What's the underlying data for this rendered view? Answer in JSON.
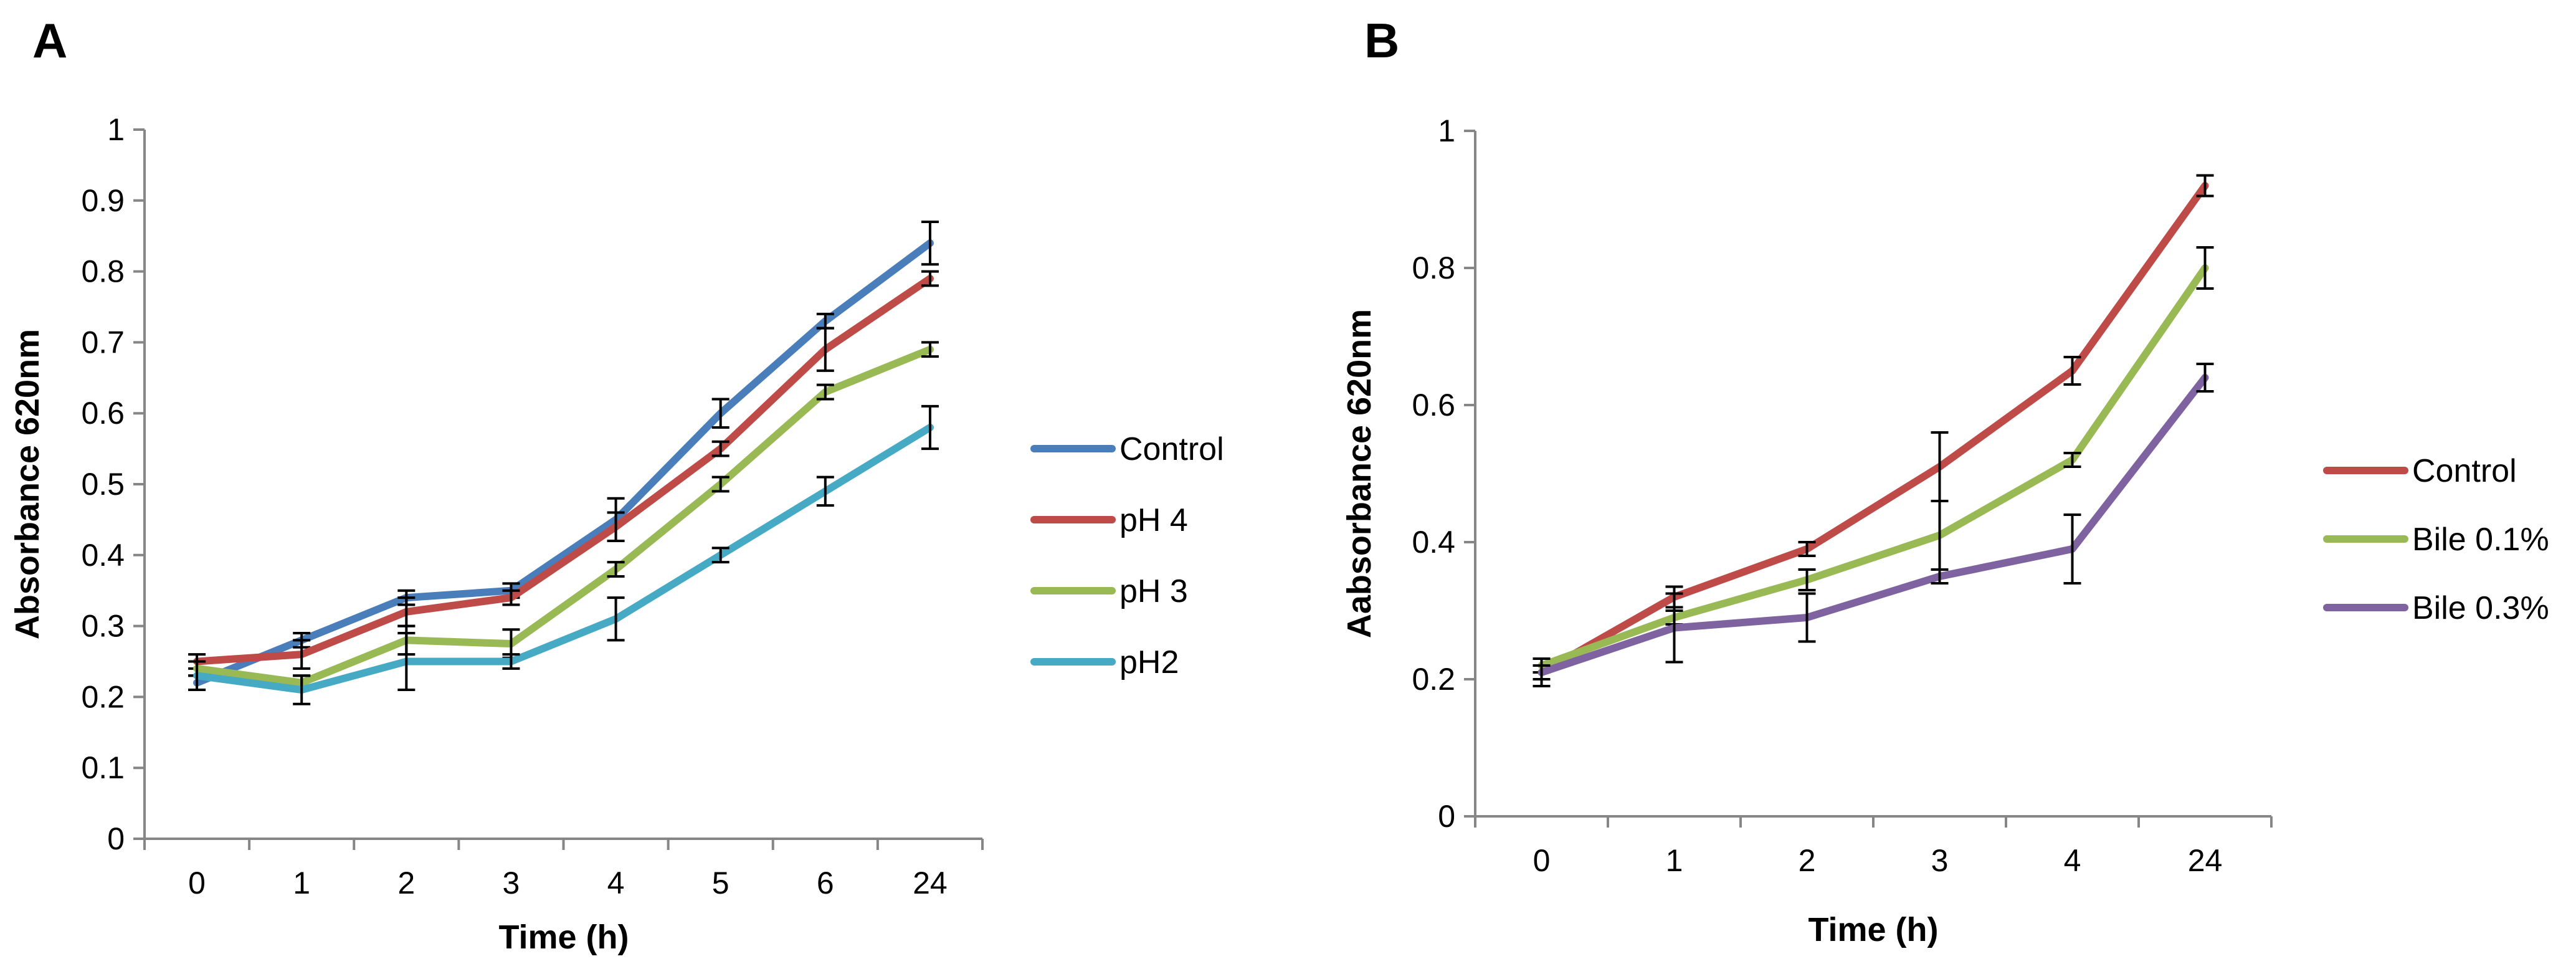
{
  "chart_data": [
    {
      "panel_label": "A",
      "type": "line",
      "categories": [
        "0",
        "1",
        "2",
        "3",
        "4",
        "5",
        "6",
        "24"
      ],
      "xlabel": "Time (h)",
      "ylabel": "Absorbance  620nm",
      "ylim": [
        0,
        1
      ],
      "yticks": [
        "0",
        "0.1",
        "0.2",
        "0.3",
        "0.4",
        "0.5",
        "0.6",
        "0.7",
        "0.8",
        "0.9",
        "1"
      ],
      "grid": false,
      "legend_position": "right",
      "series": [
        {
          "name": "Control",
          "color": "#4a7ebb",
          "values": [
            0.22,
            0.28,
            0.34,
            0.35,
            0.45,
            0.6,
            0.73,
            0.84
          ],
          "errors": [
            0.01,
            0.01,
            0.01,
            0.01,
            0.03,
            0.02,
            0.01,
            0.03
          ]
        },
        {
          "name": " pH 4",
          "color": "#be4b48",
          "values": [
            0.25,
            0.26,
            0.32,
            0.34,
            0.44,
            0.55,
            0.69,
            0.79
          ],
          "errors": [
            0.01,
            0.02,
            0.02,
            0.01,
            0.02,
            0.01,
            0.03,
            0.01
          ]
        },
        {
          "name": "pH 3",
          "color": "#98b954",
          "values": [
            0.24,
            0.22,
            0.28,
            0.275,
            0.38,
            0.5,
            0.63,
            0.69
          ],
          "errors": [
            0.01,
            0.01,
            0.02,
            0.02,
            0.01,
            0.01,
            0.01,
            0.01
          ]
        },
        {
          "name": "pH2",
          "color": "#46aac5",
          "values": [
            0.23,
            0.21,
            0.25,
            0.25,
            0.31,
            0.4,
            0.49,
            0.58
          ],
          "errors": [
            0.02,
            0.02,
            0.04,
            0.01,
            0.03,
            0.01,
            0.02,
            0.03
          ]
        }
      ]
    },
    {
      "panel_label": "B",
      "type": "line",
      "categories": [
        "0",
        "1",
        "2",
        "3",
        "4",
        "24"
      ],
      "xlabel": "Time (h)",
      "ylabel": "Aabsorbance  620nm",
      "ylim": [
        0,
        1
      ],
      "yticks": [
        "0",
        "0.2",
        "0.4",
        "0.6",
        "0.8",
        "1"
      ],
      "grid": false,
      "legend_position": "right",
      "series": [
        {
          "name": "Control",
          "color": "#be4b48",
          "values": [
            0.21,
            0.32,
            0.39,
            0.51,
            0.65,
            0.92
          ],
          "errors": [
            0.02,
            0.015,
            0.01,
            0.05,
            0.02,
            0.015
          ]
        },
        {
          "name": "Bile 0.1%",
          "color": "#98b954",
          "values": [
            0.22,
            0.29,
            0.345,
            0.41,
            0.52,
            0.8
          ],
          "errors": [
            0.01,
            0.01,
            0.015,
            0.05,
            0.01,
            0.03
          ]
        },
        {
          "name": "Bile 0.3%",
          "color": "#7f63a0",
          "values": [
            0.21,
            0.275,
            0.29,
            0.35,
            0.39,
            0.64
          ],
          "errors": [
            0.01,
            0.05,
            0.035,
            0.01,
            0.05,
            0.02
          ]
        }
      ]
    }
  ]
}
